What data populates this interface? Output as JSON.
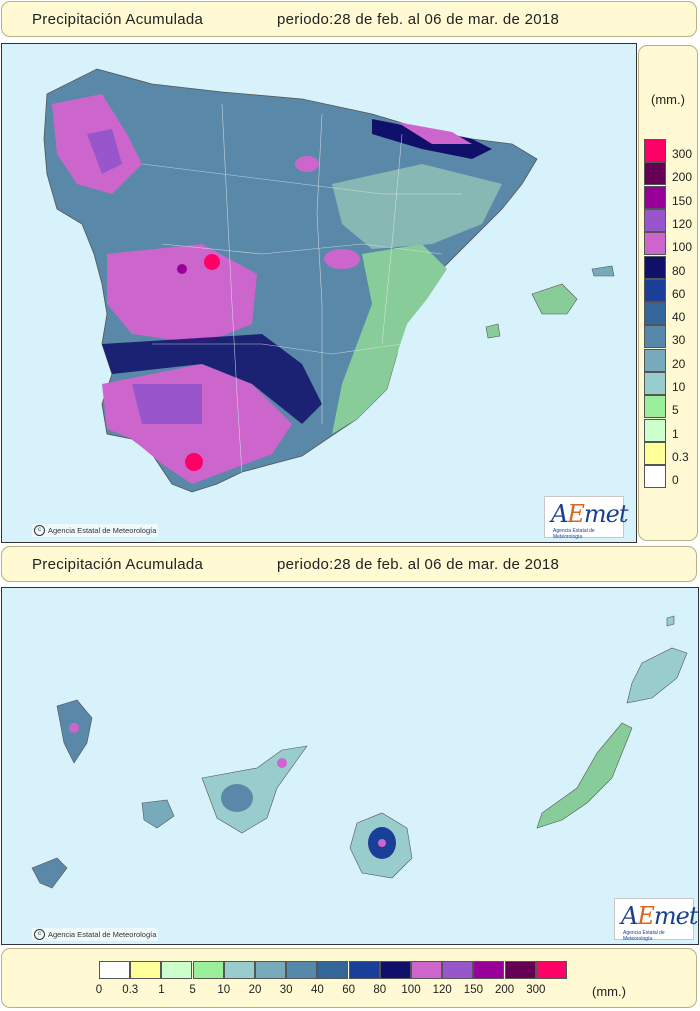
{
  "top_title": {
    "main": "Precipitación Acumulada",
    "period": "periodo:28 de feb. al 06 de mar. de 2018"
  },
  "bottom_title": {
    "main": "Precipitación Acumulada",
    "period": "periodo:28 de feb. al 06 de mar. de 2018"
  },
  "credit": "Agencia Estatal de Meteorología",
  "logo": {
    "brand_a": "A",
    "brand_e": "E",
    "brand_rest": "met",
    "subtitle": "Agencia Estatal de Meteorología"
  },
  "legend_unit": "(mm.)",
  "legend_unit_bottom": "(mm.)",
  "legend_levels": [
    "0",
    "0.3",
    "1",
    "5",
    "10",
    "20",
    "30",
    "40",
    "60",
    "80",
    "100",
    "120",
    "150",
    "200",
    "300"
  ],
  "legend_colors": [
    "#ffffff",
    "#ffff99",
    "#ccffcc",
    "#99ee99",
    "#99cccc",
    "#77aabb",
    "#5588aa",
    "#336699",
    "#1a3f99",
    "#10106b",
    "#cc66cc",
    "#9955cc",
    "#990099",
    "#660055",
    "#ff0066"
  ],
  "colors": {
    "sea": "#d7f2fb",
    "panel": "#fff9d4",
    "panel_border": "#b9b083"
  }
}
